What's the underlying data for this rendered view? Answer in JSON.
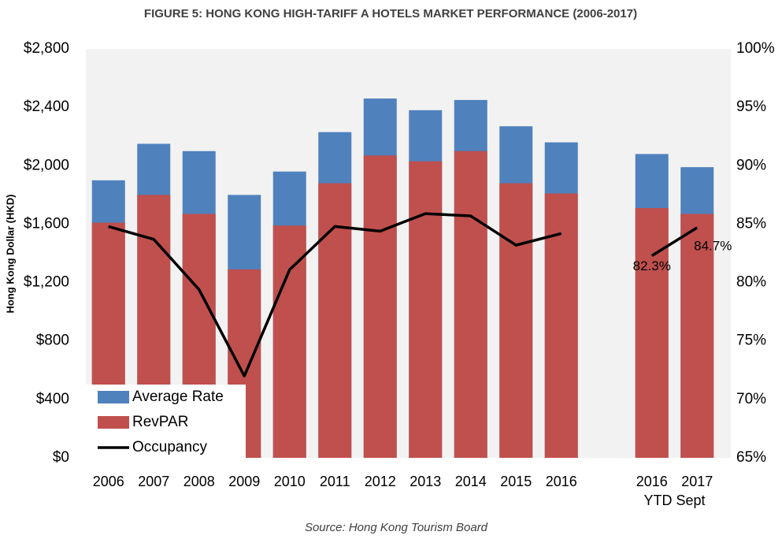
{
  "chart_data": {
    "type": "bar",
    "title": "FIGURE 5: HONG KONG HIGH-TARIFF A HOTELS MARKET PERFORMANCE (2006-2017)",
    "y_label": "Hong Kong Dollar (HKD)",
    "source": "Source: Hong Kong Tourism Board",
    "group_label": "YTD Sept",
    "categories": [
      "2006",
      "2007",
      "2008",
      "2009",
      "2010",
      "2011",
      "2012",
      "2013",
      "2014",
      "2015",
      "2016",
      null,
      "2016",
      "2017"
    ],
    "series": [
      {
        "name": "Average Rate",
        "color": "#4f81bd",
        "type": "bar",
        "values": [
          1900,
          2150,
          2100,
          1800,
          1960,
          2230,
          2460,
          2380,
          2450,
          2270,
          2160,
          null,
          2080,
          1990
        ]
      },
      {
        "name": "RevPAR",
        "color": "#c0504d",
        "type": "bar",
        "values": [
          1610,
          1800,
          1670,
          1290,
          1590,
          1880,
          2070,
          2030,
          2100,
          1880,
          1810,
          null,
          1710,
          1670
        ]
      },
      {
        "name": "Occupancy",
        "color": "#000000",
        "type": "line",
        "axis": "y2",
        "values": [
          84.8,
          83.7,
          79.4,
          72.0,
          81.1,
          84.8,
          84.4,
          85.9,
          85.7,
          83.2,
          84.2,
          null,
          82.3,
          84.7
        ],
        "value_labels": [
          null,
          null,
          null,
          null,
          null,
          null,
          null,
          null,
          null,
          null,
          null,
          null,
          "82.3%",
          "84.7%"
        ]
      }
    ],
    "ylim": [
      0,
      2800
    ],
    "yticks": [
      {
        "value": 0,
        "label": "$0"
      },
      {
        "value": 400,
        "label": "$400"
      },
      {
        "value": 800,
        "label": "$800"
      },
      {
        "value": 1200,
        "label": "$1,200"
      },
      {
        "value": 1600,
        "label": "$1,600"
      },
      {
        "value": 2000,
        "label": "$2,000"
      },
      {
        "value": 2400,
        "label": "$2,400"
      },
      {
        "value": 2800,
        "label": "$2,800"
      }
    ],
    "y2lim": [
      65,
      100
    ],
    "y2ticks": [
      {
        "value": 65,
        "label": "65%"
      },
      {
        "value": 70,
        "label": "70%"
      },
      {
        "value": 75,
        "label": "75%"
      },
      {
        "value": 80,
        "label": "80%"
      },
      {
        "value": 85,
        "label": "85%"
      },
      {
        "value": 90,
        "label": "90%"
      },
      {
        "value": 95,
        "label": "95%"
      },
      {
        "value": 100,
        "label": "100%"
      }
    ],
    "bars_overlap": true,
    "grid": false,
    "legend": "lower left",
    "plot_background": "#f2f2f2"
  }
}
